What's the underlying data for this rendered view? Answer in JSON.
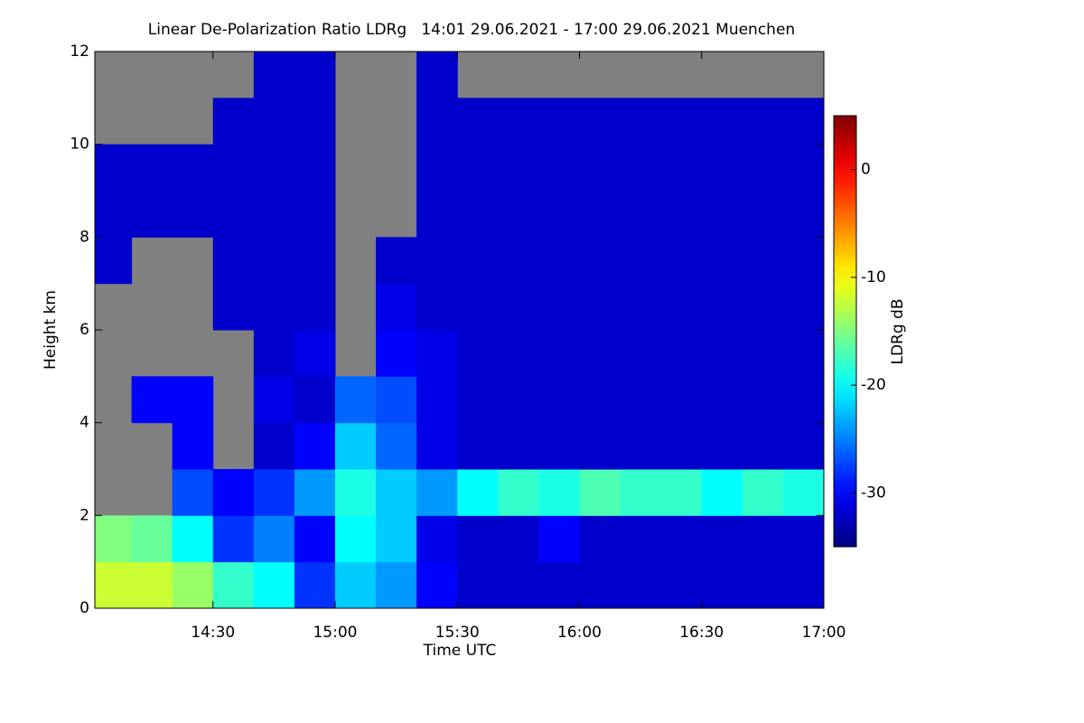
{
  "chart_data": {
    "type": "heatmap",
    "title": "Linear De-Polarization Ratio LDRg   14:01 29.06.2021 - 17:00 29.06.2021 Muenchen",
    "xlabel": "Time UTC",
    "ylabel": "Height km",
    "colorbar_label": "LDRg dB",
    "xlim": [
      841,
      1020
    ],
    "xticks": [
      {
        "value": 870,
        "label": "14:30"
      },
      {
        "value": 900,
        "label": "15:00"
      },
      {
        "value": 930,
        "label": "15:30"
      },
      {
        "value": 960,
        "label": "16:00"
      },
      {
        "value": 990,
        "label": "16:30"
      },
      {
        "value": 1020,
        "label": "17:00"
      }
    ],
    "ylim": [
      0,
      12
    ],
    "yticks": [
      0,
      2,
      4,
      6,
      8,
      10,
      12
    ],
    "clim": [
      -35,
      5
    ],
    "cticks": [
      0,
      -10,
      -20,
      -30
    ],
    "colormap": "jet",
    "missing_color": "#808080",
    "x_edges": [
      841,
      850,
      860,
      870,
      880,
      890,
      900,
      910,
      920,
      930,
      940,
      950,
      960,
      970,
      980,
      990,
      1000,
      1010,
      1020
    ],
    "y_edges": [
      0,
      1,
      2,
      3,
      4,
      5,
      6,
      7,
      8,
      9,
      10,
      11,
      12
    ],
    "z": [
      [
        -12,
        -12,
        -14,
        -18,
        -20,
        -28,
        -22,
        -24,
        -30,
        -32,
        -32,
        -32,
        -32,
        -32,
        -32,
        -32,
        -32,
        -32
      ],
      [
        -15,
        -16,
        -20,
        -28,
        -25,
        -30,
        -20,
        -22,
        -31,
        -32,
        -32,
        -30,
        -32,
        -32,
        -32,
        -32,
        -32,
        -32
      ],
      [
        null,
        null,
        -27,
        -30,
        -28,
        -24,
        -19,
        -22,
        -24,
        -20,
        -18,
        -19,
        -17,
        -18,
        -18,
        -20,
        -18,
        -19
      ],
      [
        null,
        null,
        -30,
        null,
        -32,
        -30,
        -22,
        -26,
        -31,
        -32,
        -32,
        -32,
        -32,
        -32,
        -32,
        -32,
        -32,
        -32
      ],
      [
        null,
        -30,
        -30,
        null,
        -31,
        -32,
        -26,
        -27,
        -31,
        -32,
        -32,
        -32,
        -32,
        -32,
        -32,
        -32,
        -32,
        -32
      ],
      [
        null,
        null,
        null,
        null,
        -32,
        -31,
        null,
        -30,
        -31,
        -32,
        -32,
        -32,
        -32,
        -32,
        -32,
        -32,
        -32,
        -32
      ],
      [
        null,
        null,
        null,
        -32,
        -32,
        -32,
        null,
        -31,
        -32,
        -32,
        -32,
        -32,
        -32,
        -32,
        -32,
        -32,
        -32,
        -32
      ],
      [
        -32,
        null,
        null,
        -32,
        -32,
        -32,
        null,
        -32,
        -32,
        -32,
        -32,
        -32,
        -32,
        -32,
        -32,
        -32,
        -32,
        -32
      ],
      [
        -32,
        -32,
        -32,
        -32,
        -32,
        -32,
        null,
        null,
        -32,
        -32,
        -32,
        -32,
        -32,
        -32,
        -32,
        -32,
        -32,
        -32
      ],
      [
        -32,
        -32,
        -32,
        -32,
        -32,
        -32,
        null,
        null,
        -32,
        -32,
        -32,
        -32,
        -32,
        -32,
        -32,
        -32,
        -32,
        -32
      ],
      [
        null,
        null,
        null,
        -32,
        -32,
        -32,
        null,
        null,
        -32,
        -32,
        -32,
        -32,
        -32,
        -32,
        -32,
        -32,
        -32,
        -32
      ],
      [
        null,
        null,
        null,
        null,
        -32,
        -32,
        null,
        null,
        -32,
        null,
        null,
        null,
        null,
        null,
        null,
        null,
        null,
        null
      ]
    ]
  }
}
